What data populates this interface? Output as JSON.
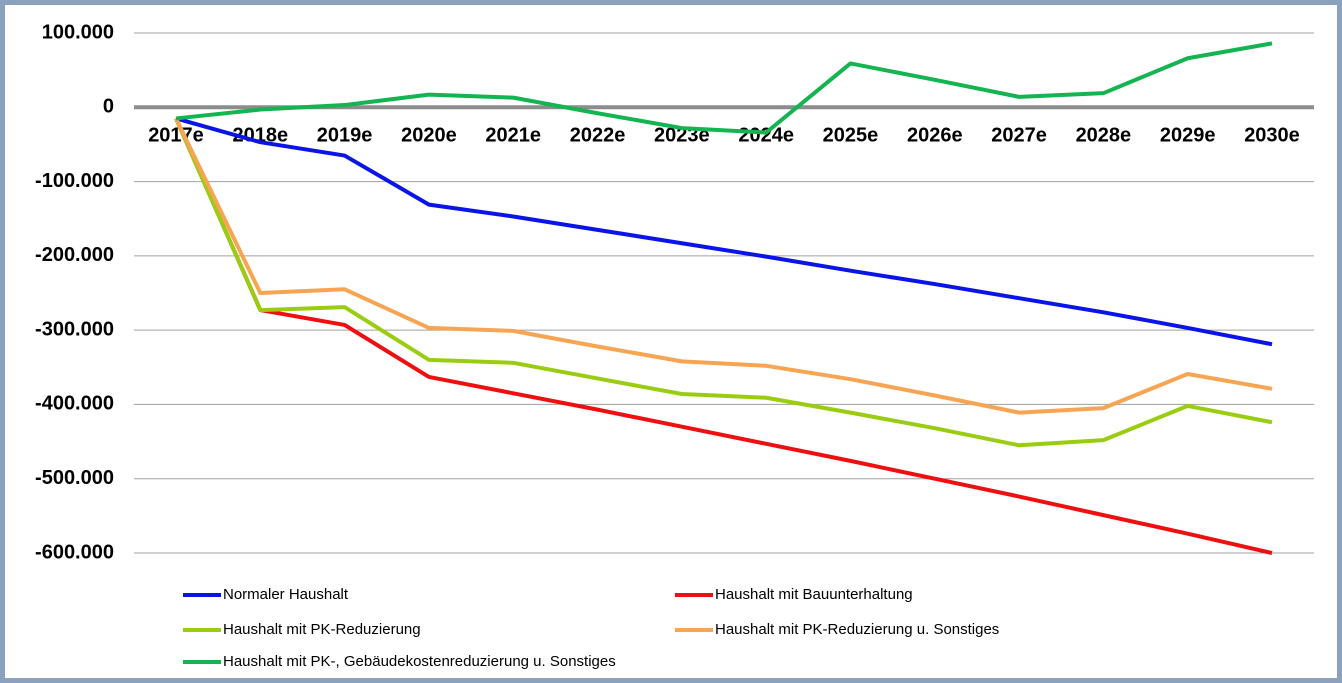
{
  "chart_data": {
    "type": "line",
    "categories": [
      "2017e",
      "2018e",
      "2019e",
      "2020e",
      "2021e",
      "2022e",
      "2023e",
      "2024e",
      "2025e",
      "2026e",
      "2027e",
      "2028e",
      "2029e",
      "2030e"
    ],
    "series": [
      {
        "name": "Normaler Haushalt",
        "color": "#0a14e6",
        "values": [
          -15000,
          -47000,
          -65000,
          -131000,
          -147000,
          -165000,
          -183000,
          -201000,
          -220000,
          -238000,
          -257000,
          -276000,
          -297000,
          -319000
        ]
      },
      {
        "name": "Haushalt mit Bauunterhaltung",
        "color": "#ee1010",
        "values": [
          -15000,
          -273000,
          -293000,
          -363000,
          -385000,
          -407000,
          -430000,
          -453000,
          -476000,
          -500000,
          -524000,
          -549000,
          -574000,
          -600000
        ]
      },
      {
        "name": "Haushalt mit PK-Reduzierung",
        "color": "#9acd12",
        "values": [
          -15000,
          -273000,
          -269000,
          -340000,
          -344000,
          -365000,
          -386000,
          -391000,
          -411000,
          -432000,
          -455000,
          -448000,
          -402000,
          -424000
        ]
      },
      {
        "name": "Haushalt mit PK-Reduzierung u. Sonstiges",
        "color": "#f7a552",
        "values": [
          -15000,
          -250000,
          -245000,
          -297000,
          -301000,
          -322000,
          -342000,
          -348000,
          -366000,
          -388000,
          -411000,
          -405000,
          -359000,
          -379000
        ]
      },
      {
        "name": "Haushalt mit PK-, Gebäudekostenreduzierung u. Sonstiges",
        "color": "#14b450",
        "values": [
          -15000,
          -3000,
          3000,
          17000,
          13000,
          -8000,
          -28000,
          -34000,
          59000,
          37000,
          14000,
          19000,
          66000,
          86000
        ]
      }
    ],
    "ylim": [
      -600000,
      100000
    ],
    "yticks": [
      {
        "value": 100000,
        "label": "100.000"
      },
      0,
      {
        "value": -100000,
        "label": "-100.000"
      },
      {
        "value": -200000,
        "label": "-200.000"
      },
      {
        "value": -300000,
        "label": "-300.000"
      },
      {
        "value": -400000,
        "label": "-400.000"
      },
      {
        "value": -500000,
        "label": "-500.000"
      },
      {
        "value": -600000,
        "label": "-600.000"
      }
    ],
    "grid": true
  }
}
